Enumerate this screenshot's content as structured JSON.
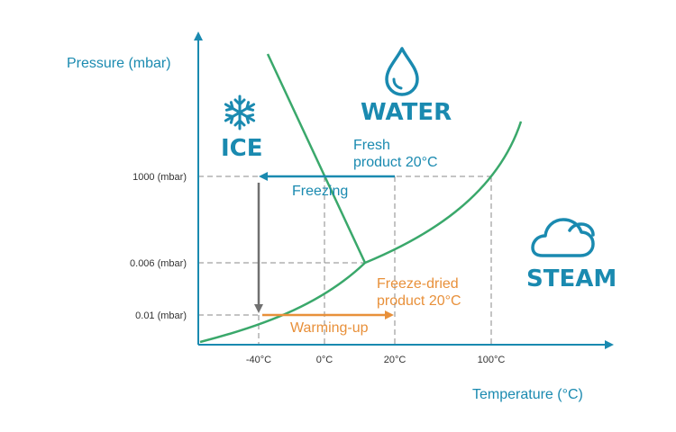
{
  "axes": {
    "y_title": "Pressure (mbar)",
    "x_title": "Temperature (°C)",
    "y_ticks": [
      "1000 (mbar)",
      "0.006 (mbar)",
      "0.01 (mbar)"
    ],
    "x_ticks": [
      "-40°C",
      "0°C",
      "20°C",
      "100°C"
    ]
  },
  "regions": {
    "ice": "ICE",
    "water": "WATER",
    "steam": "STEAM"
  },
  "annotations": {
    "fresh_line1": "Fresh",
    "fresh_line2": "product 20°C",
    "freezing": "Freezing",
    "dried_line1": "Freeze-dried",
    "dried_line2": "product 20°C",
    "warming": "Warming-up"
  },
  "icons": [
    "snowflake-icon",
    "water-drop-icon",
    "cloud-icon"
  ],
  "colors": {
    "blue": "#1a8ab0",
    "green": "#3aa86b",
    "orange": "#e8903a",
    "gray": "#707070",
    "axis": "#1a8ab0",
    "guide": "#888888"
  }
}
